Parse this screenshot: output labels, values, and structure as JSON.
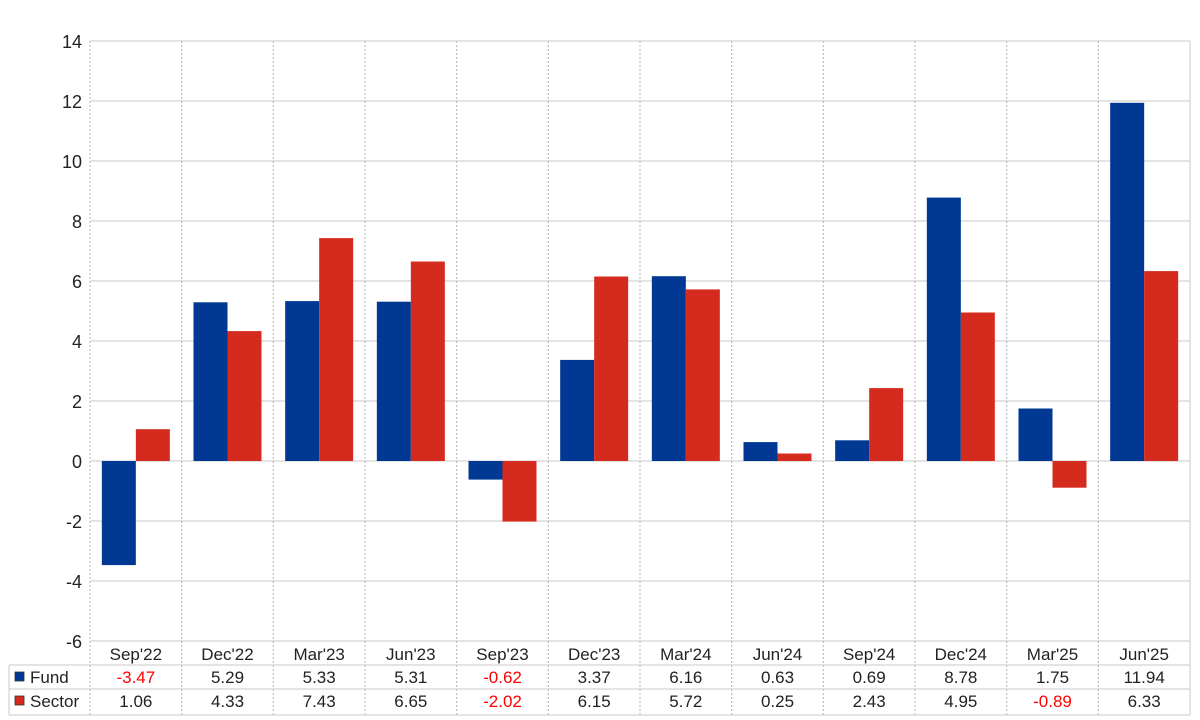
{
  "chart_data": {
    "type": "bar",
    "title": "",
    "xlabel": "",
    "ylabel": "",
    "ylim": [
      -6,
      14
    ],
    "yticks": [
      "14",
      "12",
      "10",
      "8",
      "6",
      "4",
      "2",
      "0",
      "-2",
      "-4",
      "-6"
    ],
    "grid": true,
    "legend": "table-left",
    "categories": [
      "Sep'22",
      "Dec'22",
      "Mar'23",
      "Jun'23",
      "Sep'23",
      "Dec'23",
      "Mar'24",
      "Jun'24",
      "Sep'24",
      "Dec'24",
      "Mar'25",
      "Jun'25"
    ],
    "series": [
      {
        "name": "Fund",
        "color": "#003893",
        "values": [
          -3.47,
          5.29,
          5.33,
          5.31,
          -0.62,
          3.37,
          6.16,
          0.63,
          0.69,
          8.78,
          1.75,
          11.94
        ],
        "labels": [
          "-3.47",
          "5.29",
          "5.33",
          "5.31",
          "-0.62",
          "3.37",
          "6.16",
          "0.63",
          "0.69",
          "8.78",
          "1.75",
          "11.94"
        ]
      },
      {
        "name": "Sector",
        "color": "#d52b1e",
        "values": [
          1.06,
          4.33,
          7.43,
          6.65,
          -2.02,
          6.15,
          5.72,
          0.25,
          2.43,
          4.95,
          -0.89,
          6.33
        ],
        "labels": [
          "1.06",
          "4.33",
          "7.43",
          "6.65",
          "-2.02",
          "6.15",
          "5.72",
          "0.25",
          "2.43",
          "4.95",
          "-0.89",
          "6.33"
        ]
      }
    ],
    "negative_label_color": "#ff0000"
  }
}
